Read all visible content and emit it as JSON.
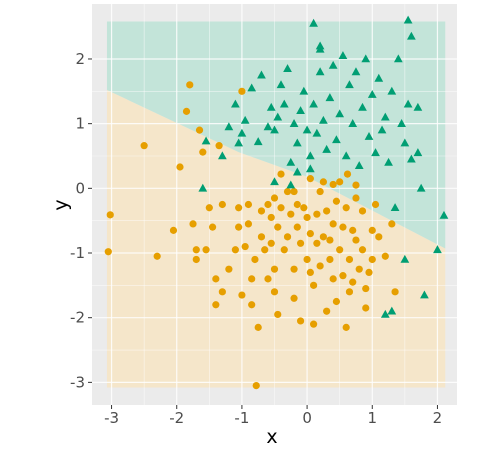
{
  "chart_data": {
    "type": "scatter",
    "title": "",
    "xlabel": "x",
    "ylabel": "y",
    "xlim": [
      -3.3,
      2.3
    ],
    "ylim": [
      -3.35,
      2.85
    ],
    "grid": true,
    "x_ticks": [
      -3,
      -2,
      -1,
      0,
      1,
      2
    ],
    "y_ticks": [
      -3,
      -2,
      -1,
      0,
      1,
      2
    ],
    "x_tick_labels": [
      "-3",
      "-2",
      "-1",
      "0",
      "1",
      "2"
    ],
    "y_tick_labels": [
      "-3",
      "-2",
      "-1",
      "0",
      "1",
      "2"
    ],
    "decision_region": {
      "x_range": [
        -3.07,
        2.12
      ],
      "y_range": [
        -3.08,
        2.58
      ],
      "boundary": [
        [
          -3.07,
          1.52
        ],
        [
          -1.05,
          0.56
        ],
        [
          0.0,
          0.18
        ],
        [
          2.12,
          -0.93
        ]
      ],
      "above_color": "#bfe3d7",
      "below_color": "#f6e5c7"
    },
    "colors": {
      "orange": "#e69f00",
      "green": "#009e73",
      "panel": "#ebebeb",
      "grid": "#ffffff"
    },
    "series": [
      {
        "marker": "circle",
        "color": "#e69f00",
        "points": [
          [
            -3.02,
            -0.41
          ],
          [
            -3.05,
            -0.98
          ],
          [
            -2.5,
            0.66
          ],
          [
            -2.3,
            -1.05
          ],
          [
            -2.05,
            -0.65
          ],
          [
            -1.95,
            0.33
          ],
          [
            -1.85,
            1.19
          ],
          [
            -1.8,
            1.6
          ],
          [
            -1.75,
            -0.55
          ],
          [
            -1.7,
            -0.95
          ],
          [
            -1.7,
            -1.1
          ],
          [
            -1.65,
            0.9
          ],
          [
            -1.6,
            0.56
          ],
          [
            -1.55,
            -0.95
          ],
          [
            -1.5,
            -0.3
          ],
          [
            -1.45,
            -0.6
          ],
          [
            -1.4,
            -1.4
          ],
          [
            -1.4,
            -1.8
          ],
          [
            -1.35,
            0.66
          ],
          [
            -1.3,
            -0.25
          ],
          [
            -1.3,
            -1.6
          ],
          [
            -1.2,
            -1.25
          ],
          [
            -1.1,
            -0.95
          ],
          [
            -1.05,
            -0.6
          ],
          [
            -1.05,
            -0.3
          ],
          [
            -1.0,
            -1.65
          ],
          [
            -1.0,
            1.5
          ],
          [
            -0.95,
            -0.9
          ],
          [
            -0.9,
            -0.25
          ],
          [
            -0.9,
            -0.55
          ],
          [
            -0.85,
            -1.4
          ],
          [
            -0.85,
            -1.8
          ],
          [
            -0.8,
            -1.1
          ],
          [
            -0.78,
            -3.05
          ],
          [
            -0.75,
            -2.15
          ],
          [
            -0.7,
            -0.35
          ],
          [
            -0.7,
            -0.75
          ],
          [
            -0.65,
            -0.95
          ],
          [
            -0.6,
            -0.25
          ],
          [
            -0.6,
            -1.4
          ],
          [
            -0.55,
            -0.45
          ],
          [
            -0.55,
            -0.85
          ],
          [
            -0.5,
            -0.15
          ],
          [
            -0.5,
            -1.25
          ],
          [
            -0.5,
            -1.6
          ],
          [
            -0.45,
            -0.6
          ],
          [
            -0.45,
            -1.95
          ],
          [
            -0.4,
            -0.3
          ],
          [
            -0.4,
            0.22
          ],
          [
            -0.35,
            -0.95
          ],
          [
            -0.3,
            -0.05
          ],
          [
            -0.3,
            -0.75
          ],
          [
            -0.25,
            -0.4
          ],
          [
            -0.2,
            -1.25
          ],
          [
            -0.2,
            -1.7
          ],
          [
            -0.15,
            -0.25
          ],
          [
            -0.15,
            -0.6
          ],
          [
            -0.1,
            -0.85
          ],
          [
            -0.1,
            -2.05
          ],
          [
            -0.05,
            -0.3
          ],
          [
            0.0,
            -0.45
          ],
          [
            0.0,
            -1.1
          ],
          [
            0.05,
            -0.7
          ],
          [
            0.05,
            -1.3
          ],
          [
            0.05,
            0.15
          ],
          [
            0.1,
            -2.1
          ],
          [
            0.1,
            -1.5
          ],
          [
            0.15,
            -0.4
          ],
          [
            0.15,
            -0.85
          ],
          [
            0.2,
            -0.05
          ],
          [
            0.2,
            -1.2
          ],
          [
            0.25,
            -0.75
          ],
          [
            0.3,
            -0.35
          ],
          [
            0.3,
            -1.9
          ],
          [
            0.35,
            -0.8
          ],
          [
            0.35,
            -1.1
          ],
          [
            0.4,
            -1.4
          ],
          [
            0.4,
            -0.55
          ],
          [
            0.45,
            -0.2
          ],
          [
            0.45,
            -1.75
          ],
          [
            0.5,
            0.1
          ],
          [
            0.5,
            -0.95
          ],
          [
            0.55,
            -0.6
          ],
          [
            0.55,
            -1.35
          ],
          [
            0.6,
            -2.15
          ],
          [
            0.6,
            -0.3
          ],
          [
            0.65,
            -1.1
          ],
          [
            0.65,
            -1.6
          ],
          [
            0.7,
            -0.65
          ],
          [
            0.7,
            -1.45
          ],
          [
            0.75,
            -0.8
          ],
          [
            0.75,
            0.05
          ],
          [
            0.8,
            -1.25
          ],
          [
            0.85,
            -0.35
          ],
          [
            0.85,
            -0.95
          ],
          [
            0.9,
            -1.55
          ],
          [
            0.9,
            -1.85
          ],
          [
            0.95,
            -1.3
          ],
          [
            1.0,
            -0.65
          ],
          [
            1.0,
            -1.1
          ],
          [
            1.05,
            -0.25
          ],
          [
            1.1,
            -0.75
          ],
          [
            1.2,
            -1.05
          ],
          [
            1.3,
            -0.55
          ],
          [
            1.35,
            -1.6
          ],
          [
            0.62,
            0.22
          ],
          [
            0.4,
            0.06
          ],
          [
            -0.2,
            -0.05
          ],
          [
            0.25,
            0.1
          ],
          [
            0.75,
            -0.15
          ]
        ]
      },
      {
        "marker": "triangle",
        "color": "#009e73",
        "points": [
          [
            -1.6,
            0.0
          ],
          [
            -1.55,
            0.73
          ],
          [
            -1.3,
            0.5
          ],
          [
            -1.2,
            0.95
          ],
          [
            -1.1,
            1.3
          ],
          [
            -1.05,
            0.7
          ],
          [
            -1.0,
            0.85
          ],
          [
            -0.95,
            1.05
          ],
          [
            -0.85,
            1.55
          ],
          [
            -0.75,
            0.72
          ],
          [
            -0.7,
            1.75
          ],
          [
            -0.6,
            0.95
          ],
          [
            -0.55,
            1.25
          ],
          [
            -0.5,
            0.9
          ],
          [
            -0.45,
            1.1
          ],
          [
            -0.4,
            1.6
          ],
          [
            -0.35,
            1.3
          ],
          [
            -0.3,
            1.85
          ],
          [
            -0.25,
            0.4
          ],
          [
            -0.2,
            1.0
          ],
          [
            -0.15,
            0.7
          ],
          [
            -0.1,
            1.2
          ],
          [
            -0.05,
            1.5
          ],
          [
            0.0,
            0.9
          ],
          [
            0.05,
            0.5
          ],
          [
            0.1,
            1.3
          ],
          [
            0.1,
            2.55
          ],
          [
            0.15,
            0.85
          ],
          [
            0.2,
            2.15
          ],
          [
            0.2,
            1.8
          ],
          [
            0.25,
            1.05
          ],
          [
            0.3,
            0.6
          ],
          [
            0.35,
            1.4
          ],
          [
            0.4,
            1.9
          ],
          [
            0.45,
            0.75
          ],
          [
            0.5,
            1.15
          ],
          [
            0.55,
            2.05
          ],
          [
            0.6,
            0.5
          ],
          [
            0.65,
            1.6
          ],
          [
            0.7,
            1.0
          ],
          [
            0.75,
            1.8
          ],
          [
            0.8,
            0.35
          ],
          [
            0.85,
            1.25
          ],
          [
            0.9,
            2.0
          ],
          [
            0.95,
            0.8
          ],
          [
            1.0,
            1.45
          ],
          [
            1.05,
            0.55
          ],
          [
            1.1,
            1.7
          ],
          [
            1.15,
            0.9
          ],
          [
            1.2,
            1.1
          ],
          [
            1.25,
            0.4
          ],
          [
            1.3,
            1.5
          ],
          [
            1.35,
            -0.3
          ],
          [
            1.4,
            2.0
          ],
          [
            1.45,
            1.0
          ],
          [
            1.5,
            0.7
          ],
          [
            1.55,
            1.3
          ],
          [
            1.6,
            0.45
          ],
          [
            1.6,
            2.35
          ],
          [
            1.7,
            1.25
          ],
          [
            1.75,
            0.0
          ],
          [
            1.8,
            -1.65
          ],
          [
            1.2,
            -1.95
          ],
          [
            1.3,
            -1.9
          ],
          [
            1.5,
            -1.1
          ],
          [
            2.0,
            -0.95
          ],
          [
            2.1,
            -0.42
          ],
          [
            0.2,
            2.2
          ],
          [
            -0.5,
            0.1
          ],
          [
            -0.25,
            0.05
          ],
          [
            0.05,
            0.3
          ],
          [
            -0.15,
            0.25
          ],
          [
            1.55,
            2.6
          ],
          [
            1.7,
            0.55
          ]
        ]
      }
    ]
  }
}
